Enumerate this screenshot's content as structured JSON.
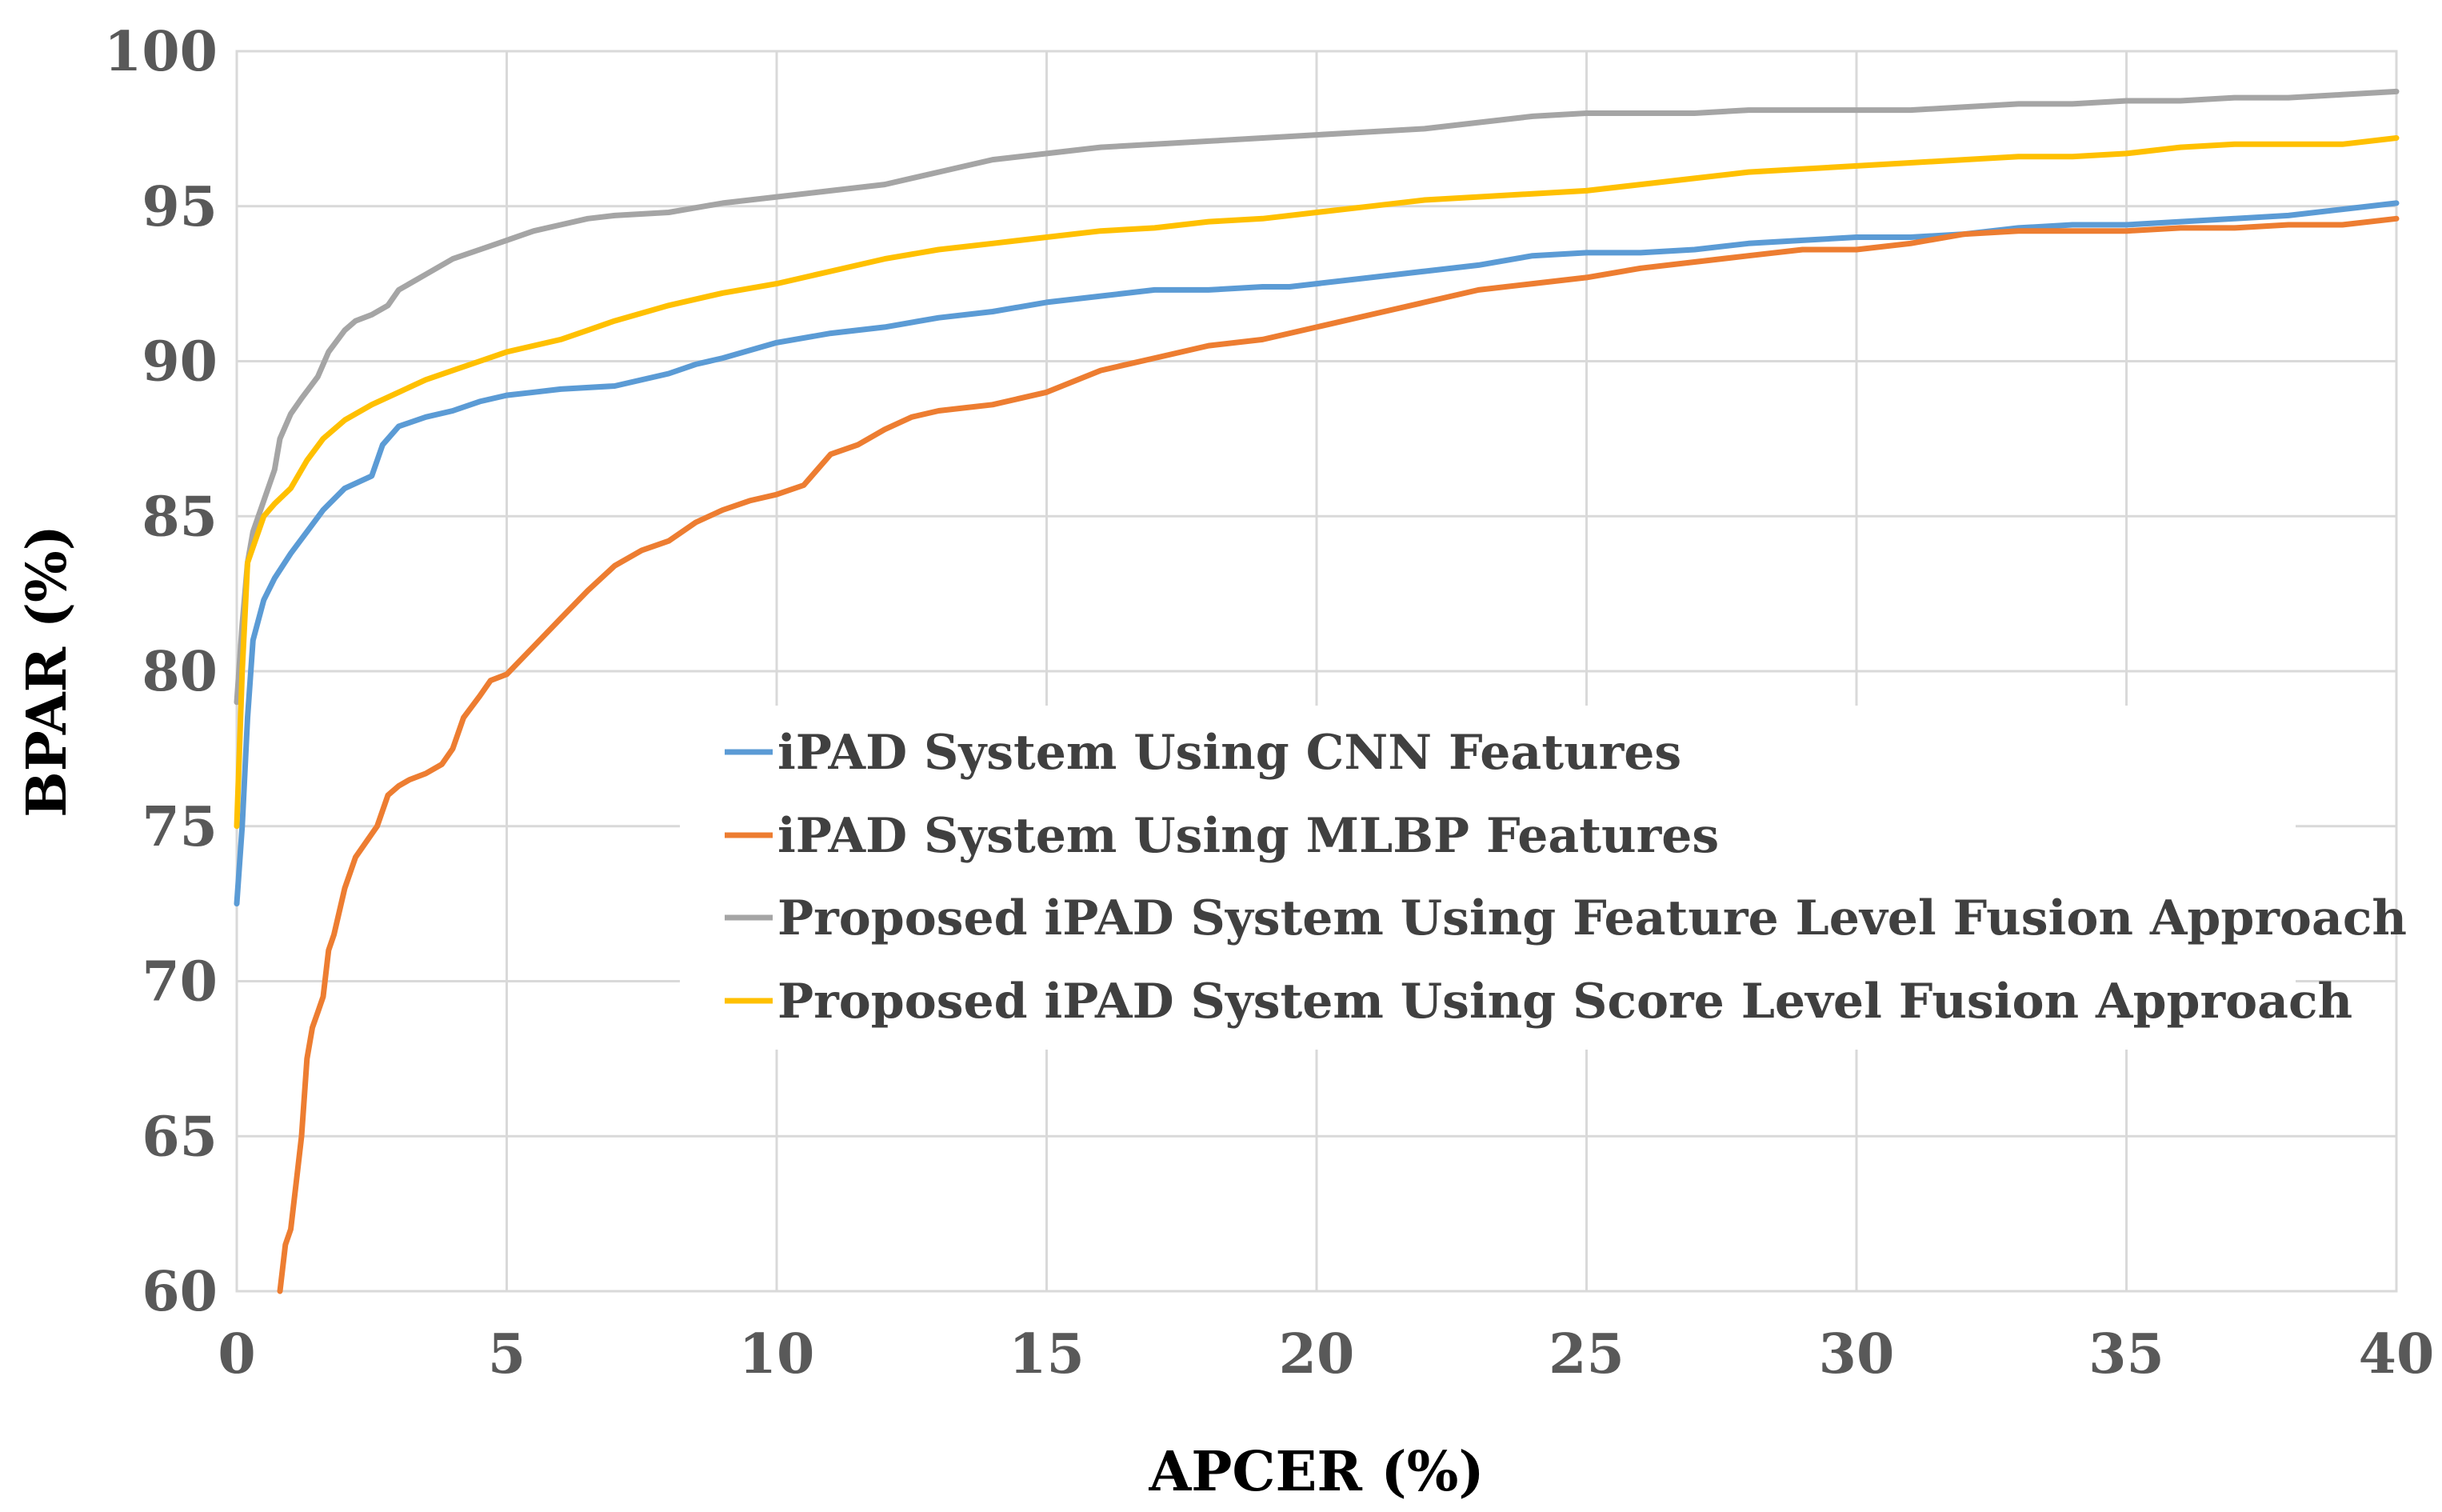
{
  "chart_data": {
    "type": "line",
    "title": "",
    "xlabel": "APCER (%)",
    "ylabel": "BPAR (%)",
    "xlim": [
      0,
      40
    ],
    "ylim": [
      60,
      100
    ],
    "xticks": [
      0,
      5,
      10,
      15,
      20,
      25,
      30,
      35,
      40
    ],
    "yticks": [
      60,
      65,
      70,
      75,
      80,
      85,
      90,
      95,
      100
    ],
    "xtick_labels": [
      "0",
      "5",
      "10",
      "15",
      "20",
      "25",
      "30",
      "35",
      "40"
    ],
    "ytick_labels": [
      "60",
      "65",
      "70",
      "75",
      "80",
      "85",
      "90",
      "95",
      "100"
    ],
    "grid": true,
    "legend_position": "center-right",
    "series": [
      {
        "name": "iPAD System Using CNN Features",
        "color": "#5b9bd5",
        "x": [
          0,
          0.1,
          0.2,
          0.3,
          0.5,
          0.7,
          1.0,
          1.3,
          1.6,
          2.0,
          2.5,
          2.7,
          3.0,
          3.5,
          4.0,
          4.5,
          5.0,
          5.5,
          6.0,
          7.0,
          8.0,
          8.5,
          9.0,
          10.0,
          11.0,
          12.0,
          13.0,
          14.0,
          15.0,
          16.0,
          17.0,
          18.0,
          19.0,
          19.5,
          20.0,
          21.0,
          22.0,
          23.0,
          24.0,
          25.0,
          26.0,
          27.0,
          28.0,
          29.0,
          30.0,
          31.0,
          32.0,
          33.0,
          34.0,
          35.0,
          36.0,
          37.0,
          38.0,
          39.0,
          40.0
        ],
        "y": [
          72.5,
          75.0,
          78.5,
          81.0,
          82.3,
          83.0,
          83.8,
          84.5,
          85.2,
          85.9,
          86.3,
          87.3,
          87.9,
          88.2,
          88.4,
          88.7,
          88.9,
          89.0,
          89.1,
          89.2,
          89.6,
          89.9,
          90.1,
          90.6,
          90.9,
          91.1,
          91.4,
          91.6,
          91.9,
          92.1,
          92.3,
          92.3,
          92.4,
          92.4,
          92.5,
          92.7,
          92.9,
          93.1,
          93.4,
          93.5,
          93.5,
          93.6,
          93.8,
          93.9,
          94.0,
          94.0,
          94.1,
          94.3,
          94.4,
          94.4,
          94.5,
          94.6,
          94.7,
          94.9,
          95.1
        ]
      },
      {
        "name": "iPAD System Using MLBP Features",
        "color": "#ed7d31",
        "x": [
          0.8,
          0.9,
          1.0,
          1.1,
          1.2,
          1.3,
          1.4,
          1.5,
          1.6,
          1.7,
          1.8,
          2.0,
          2.2,
          2.4,
          2.6,
          2.8,
          3.0,
          3.2,
          3.5,
          3.8,
          4.0,
          4.2,
          4.5,
          4.7,
          5.0,
          5.5,
          6.0,
          6.5,
          7.0,
          7.5,
          8.0,
          8.5,
          9.0,
          9.5,
          10.0,
          10.5,
          11.0,
          11.5,
          12.0,
          12.5,
          13.0,
          13.5,
          14.0,
          15.0,
          16.0,
          17.0,
          18.0,
          19.0,
          20.0,
          21.0,
          22.0,
          23.0,
          24.0,
          25.0,
          26.0,
          27.0,
          28.0,
          29.0,
          30.0,
          31.0,
          32.0,
          33.0,
          34.0,
          35.0,
          36.0,
          37.0,
          38.0,
          39.0,
          40.0
        ],
        "y": [
          60.0,
          61.5,
          62.0,
          63.5,
          65.0,
          67.5,
          68.5,
          69.0,
          69.5,
          71.0,
          71.5,
          73.0,
          74.0,
          74.5,
          75.0,
          76.0,
          76.3,
          76.5,
          76.7,
          77.0,
          77.5,
          78.5,
          79.2,
          79.7,
          79.9,
          80.8,
          81.7,
          82.6,
          83.4,
          83.9,
          84.2,
          84.8,
          85.2,
          85.5,
          85.7,
          86.0,
          87.0,
          87.3,
          87.8,
          88.2,
          88.4,
          88.5,
          88.6,
          89.0,
          89.7,
          90.1,
          90.5,
          90.7,
          91.1,
          91.5,
          91.9,
          92.3,
          92.5,
          92.7,
          93.0,
          93.2,
          93.4,
          93.6,
          93.6,
          93.8,
          94.1,
          94.2,
          94.2,
          94.2,
          94.3,
          94.3,
          94.4,
          94.4,
          94.6
        ]
      },
      {
        "name": "Proposed iPAD System Using Feature Level Fusion Approach",
        "color": "#a5a5a5",
        "x": [
          0,
          0.1,
          0.2,
          0.3,
          0.5,
          0.7,
          0.8,
          1.0,
          1.2,
          1.5,
          1.7,
          2.0,
          2.2,
          2.5,
          2.8,
          3.0,
          3.5,
          4.0,
          4.5,
          5.0,
          5.5,
          6.0,
          6.5,
          7.0,
          8.0,
          9.0,
          10.0,
          11.0,
          12.0,
          13.0,
          14.0,
          15.0,
          16.0,
          17.0,
          18.0,
          19.0,
          20.0,
          21.0,
          22.0,
          23.0,
          24.0,
          25.0,
          26.0,
          27.0,
          28.0,
          29.0,
          30.0,
          31.0,
          32.0,
          33.0,
          34.0,
          35.0,
          36.0,
          37.0,
          38.0,
          39.0,
          40.0
        ],
        "y": [
          79.0,
          81.5,
          83.5,
          84.5,
          85.5,
          86.5,
          87.5,
          88.3,
          88.8,
          89.5,
          90.3,
          91.0,
          91.3,
          91.5,
          91.8,
          92.3,
          92.8,
          93.3,
          93.6,
          93.9,
          94.2,
          94.4,
          94.6,
          94.7,
          94.8,
          95.1,
          95.3,
          95.5,
          95.7,
          96.1,
          96.5,
          96.7,
          96.9,
          97.0,
          97.1,
          97.2,
          97.3,
          97.4,
          97.5,
          97.7,
          97.9,
          98.0,
          98.0,
          98.0,
          98.1,
          98.1,
          98.1,
          98.1,
          98.2,
          98.3,
          98.3,
          98.4,
          98.4,
          98.5,
          98.5,
          98.6,
          98.7
        ]
      },
      {
        "name": "Proposed iPAD System Using Score Level Fusion Approach",
        "color": "#ffc000",
        "x": [
          0,
          0.1,
          0.2,
          0.3,
          0.5,
          0.7,
          1.0,
          1.3,
          1.6,
          2.0,
          2.5,
          3.0,
          3.5,
          4.0,
          4.5,
          5.0,
          5.5,
          6.0,
          6.5,
          7.0,
          8.0,
          9.0,
          10.0,
          11.0,
          12.0,
          13.0,
          14.0,
          15.0,
          16.0,
          17.0,
          18.0,
          19.0,
          20.0,
          21.0,
          22.0,
          23.0,
          24.0,
          25.0,
          26.0,
          27.0,
          28.0,
          29.0,
          30.0,
          31.0,
          32.0,
          33.0,
          34.0,
          35.0,
          36.0,
          37.0,
          38.0,
          39.0,
          40.0
        ],
        "y": [
          75.0,
          80.0,
          83.5,
          84.0,
          85.0,
          85.4,
          85.9,
          86.8,
          87.5,
          88.1,
          88.6,
          89.0,
          89.4,
          89.7,
          90.0,
          90.3,
          90.5,
          90.7,
          91.0,
          91.3,
          91.8,
          92.2,
          92.5,
          92.9,
          93.3,
          93.6,
          93.8,
          94.0,
          94.2,
          94.3,
          94.5,
          94.6,
          94.8,
          95.0,
          95.2,
          95.3,
          95.4,
          95.5,
          95.7,
          95.9,
          96.1,
          96.2,
          96.3,
          96.4,
          96.5,
          96.6,
          96.6,
          96.7,
          96.9,
          97.0,
          97.0,
          97.0,
          97.2
        ]
      }
    ]
  }
}
